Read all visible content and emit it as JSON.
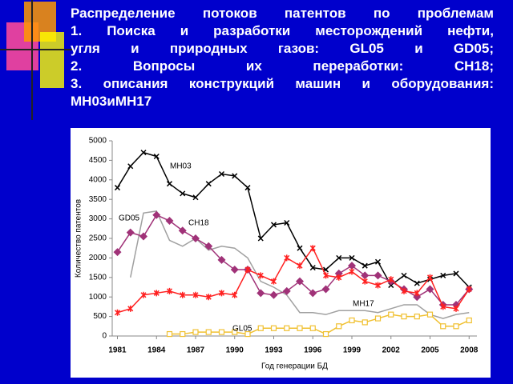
{
  "title_lines": [
    "Распределение потоков патентов по проблемам",
    "1. Поиска и разработки месторождений нефти,",
    "угля и природных газов: GL05 и GD05;",
    "2. Вопросы их переработки: CH18;",
    "3. описания конструкций машин и оборудования:",
    "MH03 и MH17"
  ],
  "chart_data": {
    "type": "line",
    "x_label": "Год генерации БД",
    "y_label": "Количество патентов",
    "x": [
      1981,
      1982,
      1983,
      1984,
      1985,
      1986,
      1987,
      1988,
      1989,
      1990,
      1991,
      1992,
      1993,
      1994,
      1995,
      1996,
      1997,
      1998,
      1999,
      2000,
      2001,
      2002,
      2003,
      2004,
      2005,
      2006,
      2007,
      2008
    ],
    "xlim": [
      1980.6,
      2008.6
    ],
    "xticks": [
      1981,
      1984,
      1987,
      1990,
      1993,
      1996,
      1999,
      2002,
      2005,
      2008
    ],
    "ylim": [
      0,
      5000
    ],
    "yticks": [
      0,
      500,
      1000,
      1500,
      2000,
      2500,
      3000,
      3500,
      4000,
      4500,
      5000
    ],
    "series": [
      {
        "name": "MH03",
        "color": "#000000",
        "marker": "x",
        "values": [
          3800,
          4350,
          4700,
          4600,
          3900,
          3650,
          3550,
          3900,
          4150,
          4100,
          3800,
          2500,
          2850,
          2900,
          2250,
          1750,
          1700,
          2000,
          2000,
          1800,
          1900,
          1300,
          1550,
          1350,
          1450,
          1550,
          1600,
          1250
        ]
      },
      {
        "name": "GD05",
        "color": "#a0a0a0",
        "marker": "none",
        "values": [
          null,
          1500,
          3150,
          3200,
          2450,
          2300,
          2500,
          2200,
          2300,
          2250,
          2000,
          1400,
          1250,
          1050,
          600,
          600,
          550,
          650,
          650,
          650,
          600,
          700,
          800,
          800,
          550,
          450,
          550,
          600
        ]
      },
      {
        "name": "CH18",
        "color": "#a03278",
        "marker": "diamond",
        "values": [
          2150,
          2650,
          2550,
          3100,
          2950,
          2700,
          2500,
          2300,
          1950,
          1700,
          1700,
          1100,
          1050,
          1150,
          1400,
          1100,
          1200,
          1600,
          1800,
          1550,
          1550,
          1400,
          1200,
          1000,
          1200,
          800,
          800,
          1200
        ]
      },
      {
        "name": "MH17",
        "color": "#ff2020",
        "marker": "star",
        "values": [
          600,
          700,
          1050,
          1100,
          1150,
          1050,
          1050,
          1000,
          1100,
          1050,
          1700,
          1550,
          1400,
          2000,
          1800,
          2250,
          1550,
          1500,
          1650,
          1400,
          1300,
          1450,
          1150,
          1100,
          1500,
          750,
          700,
          1200
        ]
      },
      {
        "name": "GL05",
        "color": "#f0c030",
        "marker": "square",
        "values": [
          null,
          null,
          null,
          null,
          50,
          50,
          100,
          100,
          100,
          100,
          50,
          200,
          200,
          200,
          200,
          200,
          50,
          250,
          400,
          350,
          450,
          550,
          500,
          500,
          550,
          250,
          250,
          400
        ]
      }
    ]
  }
}
